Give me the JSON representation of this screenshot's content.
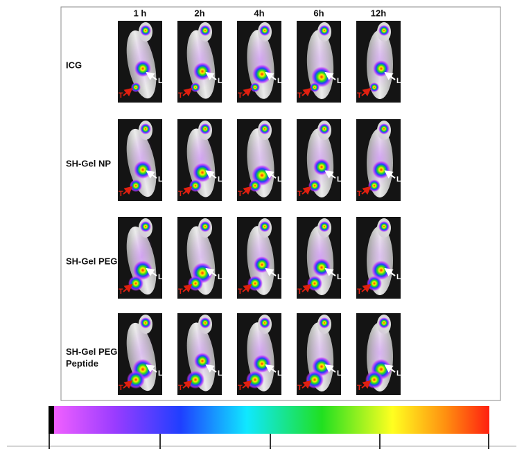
{
  "column_headers": [
    "1 h",
    "2h",
    "4h",
    "6h",
    "12h"
  ],
  "rows": [
    {
      "label": [
        "ICG"
      ]
    },
    {
      "label": [
        "SH-Gel NP"
      ]
    },
    {
      "label": [
        "SH-Gel PEG"
      ]
    },
    {
      "label": [
        "SH-Gel PEG",
        "Peptide"
      ]
    }
  ],
  "markers": {
    "tumor": "T",
    "liver": "L"
  }
}
